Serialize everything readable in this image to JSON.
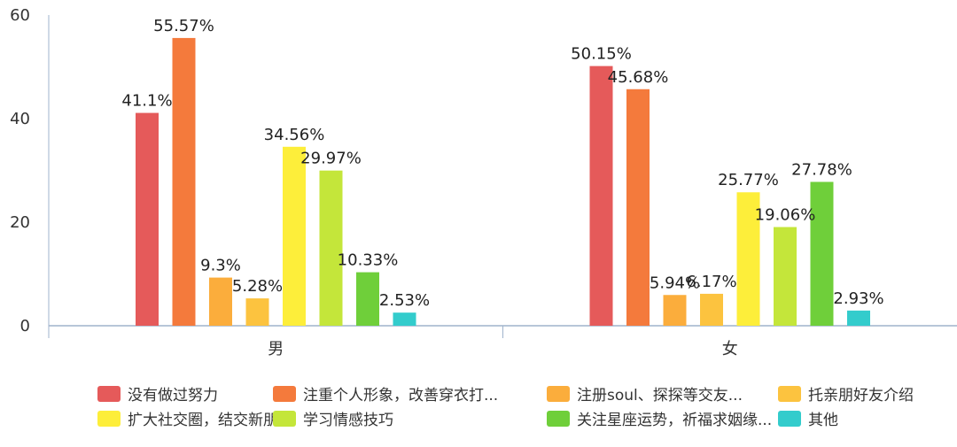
{
  "chart_data": {
    "type": "bar",
    "categories": [
      "男",
      "女"
    ],
    "ylim": [
      0,
      60
    ],
    "yticks": [
      "0",
      "20",
      "40",
      "60"
    ],
    "grid": false,
    "legend_position": "bottom",
    "series": [
      {
        "name": "没有做过努力",
        "color": "#e55a5a",
        "values": [
          41.1,
          50.15
        ],
        "labels": [
          "41.1%",
          "50.15%"
        ]
      },
      {
        "name": "注重个人形象，改善穿衣打...",
        "color": "#f47a3c",
        "values": [
          55.57,
          45.68
        ],
        "labels": [
          "55.57%",
          "45.68%"
        ]
      },
      {
        "name": "注册soul、探探等交友...",
        "color": "#fbad3c",
        "values": [
          9.3,
          5.94
        ],
        "labels": [
          "9.3%",
          "5.94%"
        ]
      },
      {
        "name": "托亲朋好友介绍",
        "color": "#fcc33f",
        "values": [
          5.28,
          6.17
        ],
        "labels": [
          "5.28%",
          "6.17%"
        ]
      },
      {
        "name": "扩大社交圈，结交新朋友",
        "color": "#fdee3a",
        "values": [
          34.56,
          25.77
        ],
        "labels": [
          "34.56%",
          "25.77%"
        ]
      },
      {
        "name": "学习情感技巧",
        "color": "#c4e63a",
        "values": [
          29.97,
          19.06
        ],
        "labels": [
          "29.97%",
          "19.06%"
        ]
      },
      {
        "name": "关注星座运势，祈福求姻缘...",
        "color": "#6fcf3a",
        "values": [
          10.33,
          27.78
        ],
        "labels": [
          "10.33%",
          "27.78%"
        ]
      },
      {
        "name": "其他",
        "color": "#33cccc",
        "values": [
          2.53,
          2.93
        ],
        "labels": [
          "2.53%",
          "2.93%"
        ]
      }
    ]
  }
}
